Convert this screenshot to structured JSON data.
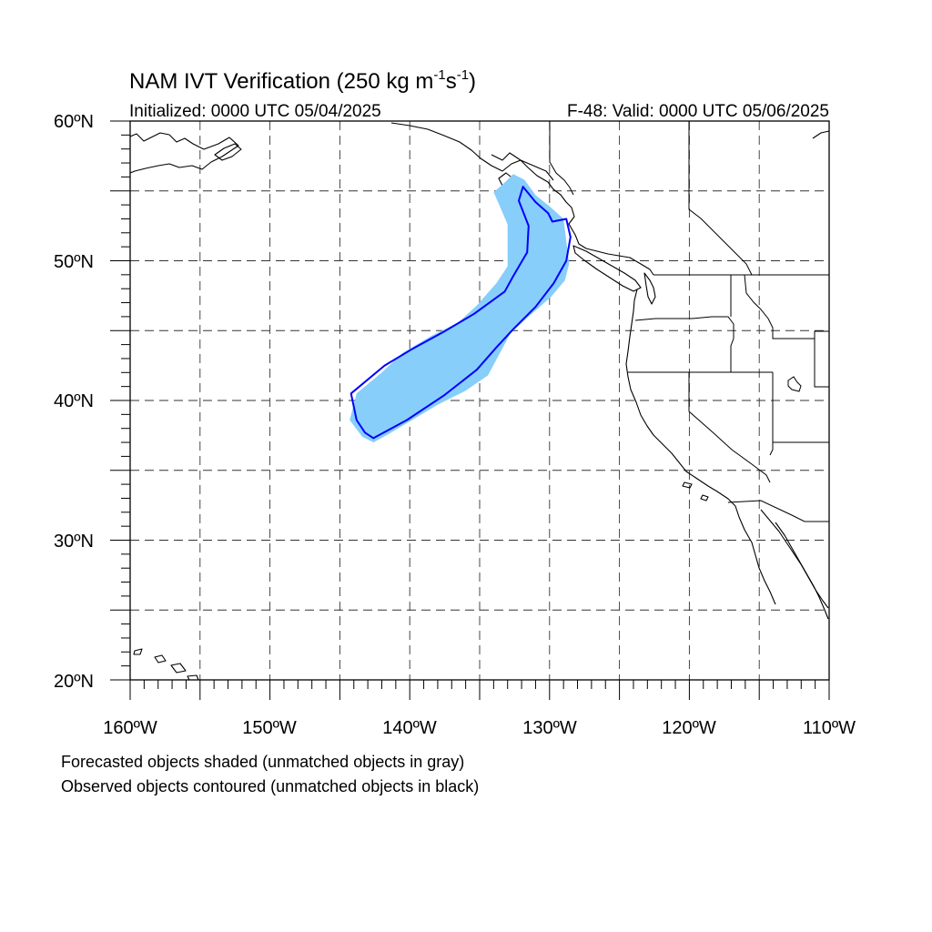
{
  "title": {
    "main": "NAM IVT Verification (250 kg m",
    "sup1": "-1",
    "mid": "s",
    "sup2": "-1",
    "close": ")"
  },
  "initialized": "Initialized: 0000 UTC 05/04/2025",
  "valid": "F-48: Valid: 0000 UTC 05/06/2025",
  "map": {
    "lon_range": [
      -160,
      -110
    ],
    "lat_range": [
      20,
      60
    ],
    "lat_labels": [
      "60ºN",
      "50ºN",
      "40ºN",
      "30ºN",
      "20ºN"
    ],
    "lon_labels": [
      "160ºW",
      "150ºW",
      "140ºW",
      "130ºW",
      "120ºW",
      "110ºW"
    ],
    "grid_dashed": true,
    "gridline_lats": [
      25,
      30,
      35,
      40,
      45,
      50,
      55
    ],
    "gridline_lons": [
      -155,
      -150,
      -145,
      -140,
      -135,
      -130,
      -125,
      -120,
      -115
    ],
    "forecast_fill_color": "#87cefa",
    "observed_contour_color": "#0000ff",
    "coastline_color": "#000000",
    "forecast_object": [
      [
        -142.6,
        37.0
      ],
      [
        -141.5,
        37.6
      ],
      [
        -140.0,
        38.5
      ],
      [
        -138.0,
        39.7
      ],
      [
        -136.0,
        40.7
      ],
      [
        -134.4,
        41.8
      ],
      [
        -133.6,
        43.3
      ],
      [
        -132.8,
        44.8
      ],
      [
        -131.5,
        46.0
      ],
      [
        -129.9,
        47.4
      ],
      [
        -128.9,
        48.6
      ],
      [
        -128.6,
        49.8
      ],
      [
        -128.8,
        51.4
      ],
      [
        -129.0,
        53.0
      ],
      [
        -130.0,
        53.9
      ],
      [
        -131.0,
        54.7
      ],
      [
        -131.8,
        55.8
      ],
      [
        -132.6,
        56.2
      ],
      [
        -133.2,
        55.6
      ],
      [
        -134.0,
        54.9
      ],
      [
        -133.6,
        54.0
      ],
      [
        -133.0,
        52.6
      ],
      [
        -133.0,
        51.0
      ],
      [
        -133.0,
        49.6
      ],
      [
        -133.8,
        48.4
      ],
      [
        -135.2,
        46.8
      ],
      [
        -136.5,
        45.6
      ],
      [
        -138.5,
        44.6
      ],
      [
        -140.5,
        43.4
      ],
      [
        -142.0,
        42.0
      ],
      [
        -143.8,
        40.5
      ],
      [
        -144.3,
        38.6
      ],
      [
        -143.4,
        37.4
      ]
    ],
    "observed_object": [
      [
        -142.6,
        37.3
      ],
      [
        -140.2,
        38.6
      ],
      [
        -137.5,
        40.4
      ],
      [
        -135.2,
        42.2
      ],
      [
        -133.8,
        43.8
      ],
      [
        -132.6,
        45.1
      ],
      [
        -131.0,
        46.7
      ],
      [
        -129.7,
        48.4
      ],
      [
        -128.8,
        50.0
      ],
      [
        -128.5,
        51.7
      ],
      [
        -128.8,
        53.0
      ],
      [
        -129.8,
        52.8
      ],
      [
        -130.1,
        53.4
      ],
      [
        -131.0,
        54.2
      ],
      [
        -131.9,
        55.3
      ],
      [
        -132.2,
        54.3
      ],
      [
        -131.5,
        52.5
      ],
      [
        -131.6,
        50.6
      ],
      [
        -132.6,
        48.9
      ],
      [
        -133.2,
        47.8
      ],
      [
        -135.4,
        46.2
      ],
      [
        -137.6,
        44.9
      ],
      [
        -139.8,
        43.7
      ],
      [
        -141.8,
        42.5
      ],
      [
        -144.2,
        40.5
      ],
      [
        -143.8,
        38.6
      ],
      [
        -143.2,
        37.7
      ]
    ]
  },
  "notes": [
    "Forecasted objects shaded (unmatched objects in gray)",
    "Observed objects contoured (unmatched objects in black)"
  ]
}
